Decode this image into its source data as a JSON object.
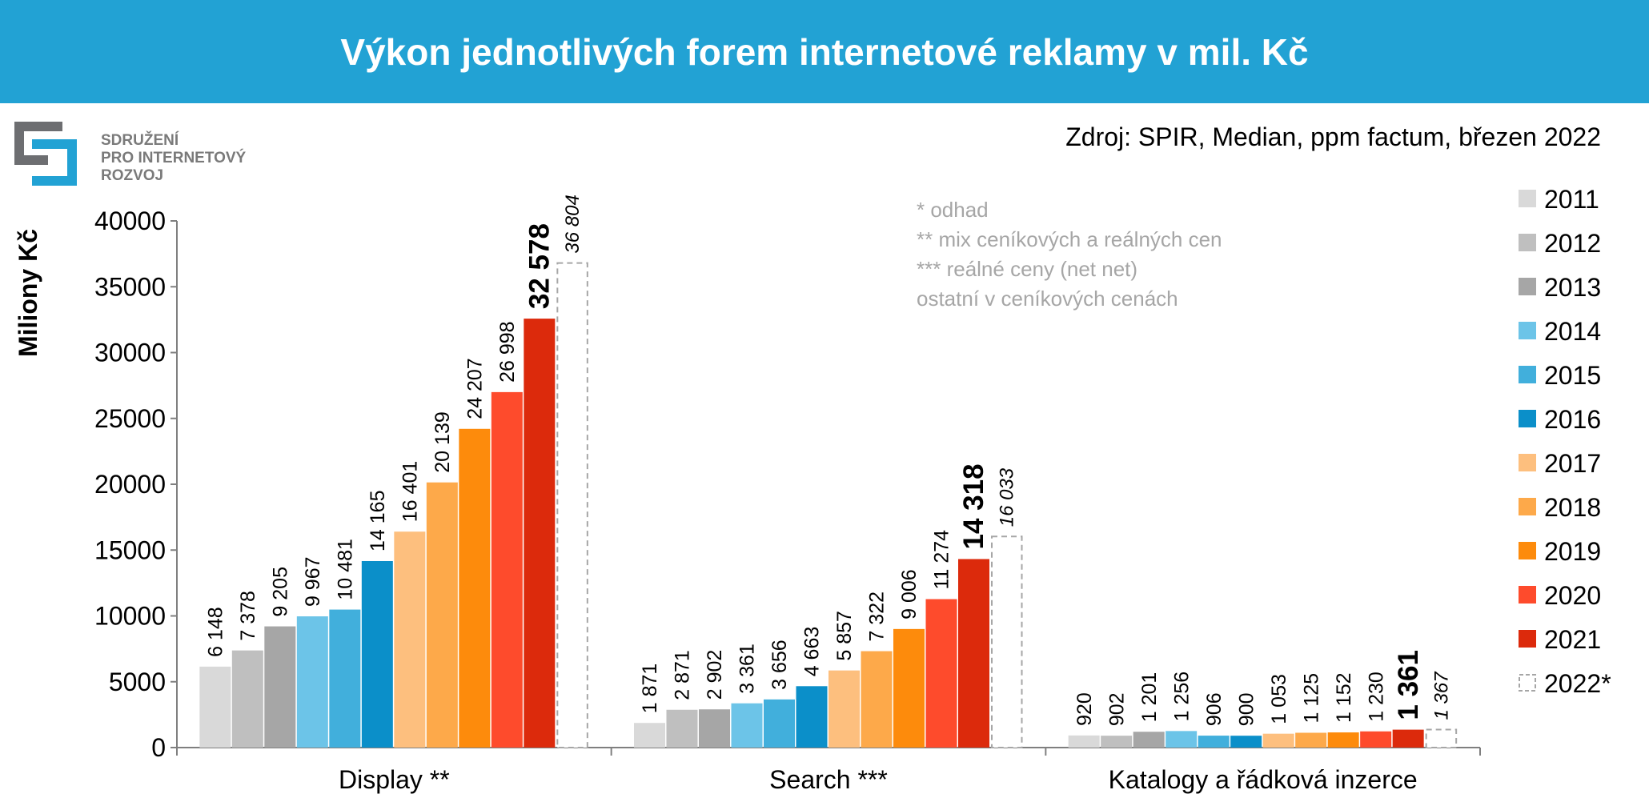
{
  "header": {
    "title": "Výkon jednotlivých forem internetové reklamy v mil. Kč"
  },
  "logo": {
    "line1": "SDRUŽENÍ",
    "line2": "PRO INTERNETOVÝ",
    "line3": "ROZVOJ",
    "colors": {
      "grey": "#6d6e71",
      "blue": "#22a2d4"
    }
  },
  "source": "Zdroj: SPIR, Median, ppm factum, březen 2022",
  "notes": [
    "* odhad",
    "** mix ceníkových a reálných cen",
    "*** reálné ceny (net net)",
    "ostatní v ceníkových cenách"
  ],
  "chart_data": {
    "type": "bar",
    "ylabel": "Miliony Kč",
    "ylim": [
      0,
      40000
    ],
    "yticks": [
      0,
      5000,
      10000,
      15000,
      20000,
      25000,
      30000,
      35000,
      40000
    ],
    "categories": [
      "Display **",
      "Search ***",
      "Katalogy a řádková inzerce"
    ],
    "legend_position": "right",
    "series": [
      {
        "name": "2011",
        "color": "#d9d9d9",
        "values": [
          6148,
          1871,
          920
        ],
        "labels": [
          "6 148",
          "1 871",
          "920"
        ]
      },
      {
        "name": "2012",
        "color": "#bfbfbf",
        "values": [
          7378,
          2871,
          902
        ],
        "labels": [
          "7 378",
          "2 871",
          "902"
        ]
      },
      {
        "name": "2013",
        "color": "#a6a6a6",
        "values": [
          9205,
          2902,
          1201
        ],
        "labels": [
          "9 205",
          "2 902",
          "1 201"
        ]
      },
      {
        "name": "2014",
        "color": "#6cc4e8",
        "values": [
          9967,
          3361,
          1256
        ],
        "labels": [
          "9 967",
          "3 361",
          "1 256"
        ]
      },
      {
        "name": "2015",
        "color": "#41afdc",
        "values": [
          10481,
          3656,
          906
        ],
        "labels": [
          "10 481",
          "3 656",
          "906"
        ]
      },
      {
        "name": "2016",
        "color": "#0b8fc9",
        "values": [
          14165,
          4663,
          900
        ],
        "labels": [
          "14 165",
          "4 663",
          "900"
        ]
      },
      {
        "name": "2017",
        "color": "#fdbf7e",
        "values": [
          16401,
          5857,
          1053
        ],
        "labels": [
          "16 401",
          "5 857",
          "1 053"
        ]
      },
      {
        "name": "2018",
        "color": "#fda94a",
        "values": [
          20139,
          7322,
          1125
        ],
        "labels": [
          "20 139",
          "7 322",
          "1 125"
        ]
      },
      {
        "name": "2019",
        "color": "#fd8b0c",
        "values": [
          24207,
          9006,
          1152
        ],
        "labels": [
          "24 207",
          "9 006",
          "1 152"
        ]
      },
      {
        "name": "2020",
        "color": "#fe4b2c",
        "values": [
          26998,
          11274,
          1230
        ],
        "labels": [
          "26 998",
          "11 274",
          "1 230"
        ]
      },
      {
        "name": "2021",
        "color": "#dc2a0c",
        "values": [
          32578,
          14318,
          1361
        ],
        "labels": [
          "32 578",
          "14 318",
          "1 361"
        ],
        "emphasis": "bold"
      },
      {
        "name": "2022*",
        "color": "#a6a6a6",
        "style": "dashed-outline",
        "values": [
          36804,
          16033,
          1367
        ],
        "labels": [
          "36 804",
          "16 033",
          "1 367"
        ],
        "emphasis": "italic"
      }
    ]
  }
}
